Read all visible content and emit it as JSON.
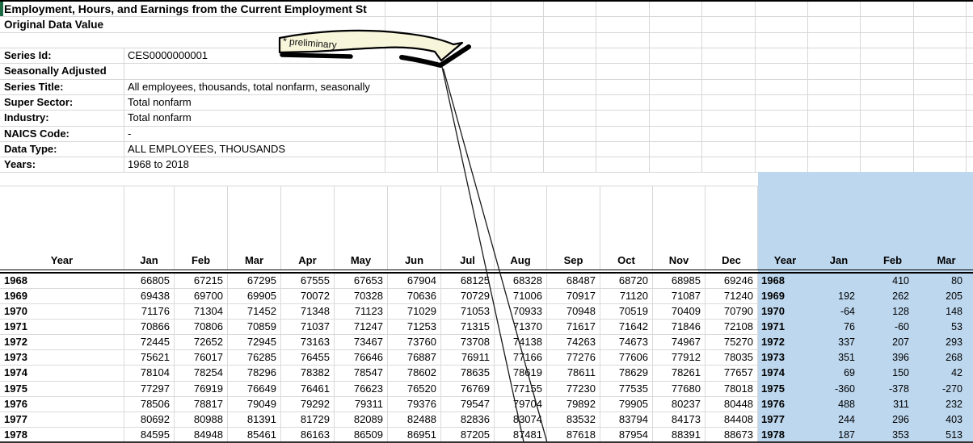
{
  "title": "Employment, Hours, and Earnings from the Current Employment St",
  "subtitle": "Original Data Value",
  "callout": {
    "label": "* preliminary",
    "fill": "#F7F5DA"
  },
  "metadata": [
    {
      "label": "Series Id:",
      "value": "CES0000000001"
    },
    {
      "label": "Seasonally Adjusted",
      "value": ""
    },
    {
      "label": "Series Title:",
      "value": "All employees, thousands, total nonfarm, seasonally"
    },
    {
      "label": "Super Sector:",
      "value": "Total nonfarm"
    },
    {
      "label": "Industry:",
      "value": "Total nonfarm"
    },
    {
      "label": "NAICS Code:",
      "value": "-"
    },
    {
      "label": "Data Type:",
      "value": "ALL EMPLOYEES, THOUSANDS"
    },
    {
      "label": "Years:",
      "value": "1968 to 2018"
    }
  ],
  "main_table": {
    "headers": [
      "Year",
      "Jan",
      "Feb",
      "Mar",
      "Apr",
      "May",
      "Jun",
      "Jul",
      "Aug",
      "Sep",
      "Oct",
      "Nov",
      "Dec"
    ],
    "rows": [
      {
        "year": "1968",
        "values": [
          66805,
          67215,
          67295,
          67555,
          67653,
          67904,
          68125,
          68328,
          68487,
          68720,
          68985,
          69246
        ]
      },
      {
        "year": "1969",
        "values": [
          69438,
          69700,
          69905,
          70072,
          70328,
          70636,
          70729,
          71006,
          70917,
          71120,
          71087,
          71240
        ]
      },
      {
        "year": "1970",
        "values": [
          71176,
          71304,
          71452,
          71348,
          71123,
          71029,
          71053,
          70933,
          70948,
          70519,
          70409,
          70790
        ]
      },
      {
        "year": "1971",
        "values": [
          70866,
          70806,
          70859,
          71037,
          71247,
          71253,
          71315,
          71370,
          71617,
          71642,
          71846,
          72108
        ]
      },
      {
        "year": "1972",
        "values": [
          72445,
          72652,
          72945,
          73163,
          73467,
          73760,
          73708,
          74138,
          74263,
          74673,
          74967,
          75270
        ]
      },
      {
        "year": "1973",
        "values": [
          75621,
          76017,
          76285,
          76455,
          76646,
          76887,
          76911,
          77166,
          77276,
          77606,
          77912,
          78035
        ]
      },
      {
        "year": "1974",
        "values": [
          78104,
          78254,
          78296,
          78382,
          78547,
          78602,
          78635,
          78619,
          78611,
          78629,
          78261,
          77657
        ]
      },
      {
        "year": "1975",
        "values": [
          77297,
          76919,
          76649,
          76461,
          76623,
          76520,
          76769,
          77155,
          77230,
          77535,
          77680,
          78018
        ]
      },
      {
        "year": "1976",
        "values": [
          78506,
          78817,
          79049,
          79292,
          79311,
          79376,
          79547,
          79704,
          79892,
          79905,
          80237,
          80448
        ]
      },
      {
        "year": "1977",
        "values": [
          80692,
          80988,
          81391,
          81729,
          82089,
          82488,
          82836,
          83074,
          83532,
          83794,
          84173,
          84408
        ]
      },
      {
        "year": "1978",
        "values": [
          84595,
          84948,
          85461,
          86163,
          86509,
          86951,
          87205,
          87481,
          87618,
          87954,
          88391,
          88673
        ]
      }
    ]
  },
  "diff_table": {
    "headers": [
      "Year",
      "Jan",
      "Feb",
      "Mar"
    ],
    "highlight_color": "#BDD7EE",
    "rows": [
      {
        "year": "1968",
        "values": [
          "",
          410,
          80
        ]
      },
      {
        "year": "1969",
        "values": [
          192,
          262,
          205
        ]
      },
      {
        "year": "1970",
        "values": [
          -64,
          128,
          148
        ]
      },
      {
        "year": "1971",
        "values": [
          76,
          -60,
          53
        ]
      },
      {
        "year": "1972",
        "values": [
          337,
          207,
          293
        ]
      },
      {
        "year": "1973",
        "values": [
          351,
          396,
          268
        ]
      },
      {
        "year": "1974",
        "values": [
          69,
          150,
          42
        ]
      },
      {
        "year": "1975",
        "values": [
          -360,
          -378,
          -270
        ]
      },
      {
        "year": "1976",
        "values": [
          488,
          311,
          232
        ]
      },
      {
        "year": "1977",
        "values": [
          244,
          296,
          403
        ]
      },
      {
        "year": "1978",
        "values": [
          187,
          353,
          513
        ]
      }
    ]
  }
}
